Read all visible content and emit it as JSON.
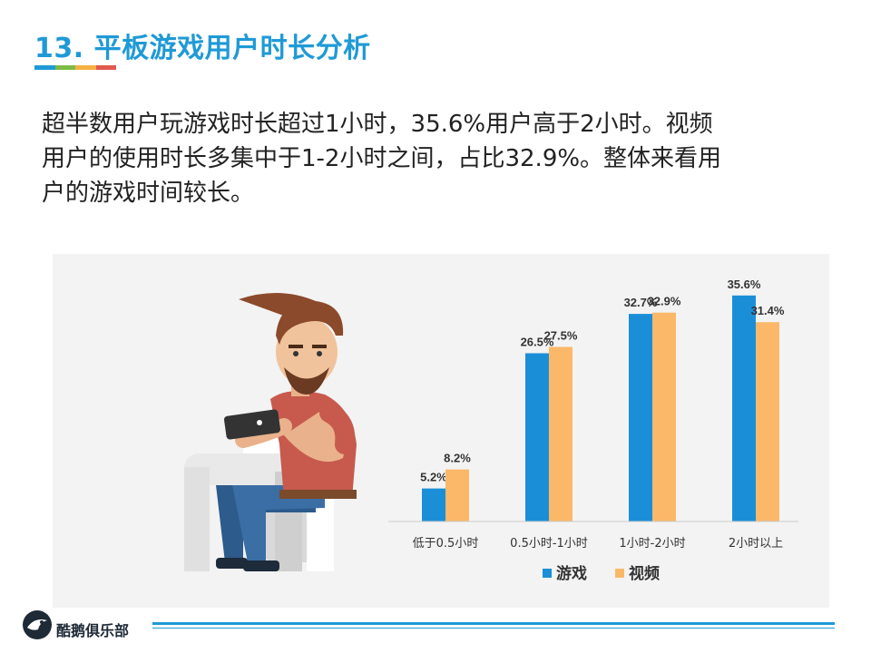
{
  "title": "13. 平板游戏用户时长分析",
  "title_colors": [
    "#1f9ad6",
    "#7dbb44",
    "#f5b041",
    "#e05a4f"
  ],
  "description_lines": [
    "超半数用户玩游戏时长超过1小时，35.6%用户高于2小时。视频",
    "用户的使用时长多集中于1-2小时之间，占比32.9%。整体来看用",
    "户的游戏时间较长。"
  ],
  "illustration": {
    "icon": "man-with-tablet-illustration"
  },
  "chart_data": {
    "type": "bar",
    "categories": [
      "低于0.5小时",
      "0.5小时-1小时",
      "1小时-2小时",
      "2小时以上"
    ],
    "series": [
      {
        "name": "游戏",
        "values": [
          5.2,
          26.5,
          32.7,
          35.6
        ],
        "labels": [
          "5.2%",
          "26.5%",
          "32.7%",
          "35.6%"
        ],
        "color": "#1a8fd8"
      },
      {
        "name": "视频",
        "values": [
          8.2,
          27.5,
          32.9,
          31.4
        ],
        "labels": [
          "8.2%",
          "27.5%",
          "32.9%",
          "31.4%"
        ],
        "color": "#fbb869"
      }
    ],
    "ylim": [
      0,
      40
    ],
    "grid": false,
    "legend": "bottom",
    "title": "",
    "xlabel": "",
    "ylabel": ""
  },
  "footer": {
    "brand": "酷鹅俱乐部",
    "logo_icon": "penguin-logo-icon",
    "line_color": "#1f9ad6"
  }
}
